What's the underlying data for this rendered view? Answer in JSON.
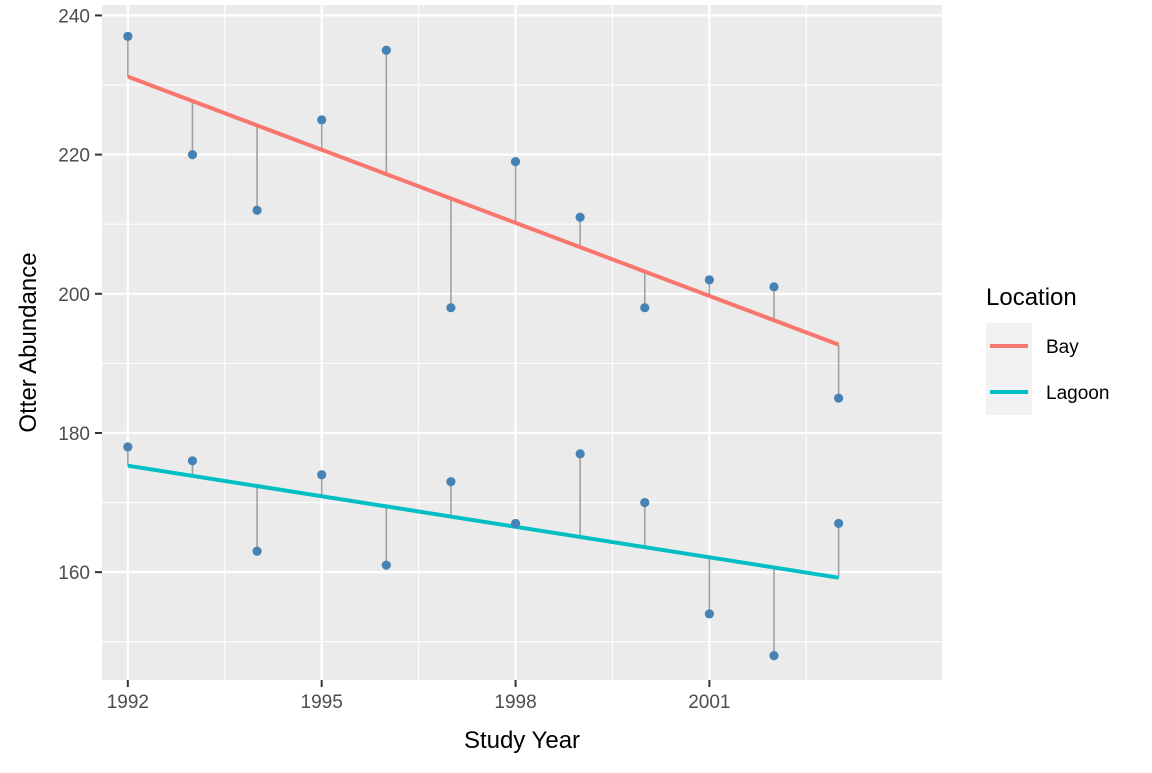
{
  "chart_data": {
    "type": "line",
    "title": "",
    "xlabel": "Study Year",
    "ylabel": "Otter Abundance",
    "xlim": [
      1991.6,
      2004.6
    ],
    "ylim": [
      144.5,
      241.5
    ],
    "x_ticks": [
      1992,
      1995,
      1998,
      2001
    ],
    "y_ticks": [
      160,
      180,
      200,
      220,
      240
    ],
    "grid": true,
    "legend": {
      "title": "Location",
      "position": "right",
      "entries": [
        "Bay",
        "Lagoon"
      ]
    },
    "point_color": "#4682b4",
    "residual_color": "#a0a0a0",
    "series": [
      {
        "name": "Bay",
        "color": "#f8766d",
        "x": [
          1992,
          1993,
          1994,
          1995,
          1996,
          1997,
          1998,
          1999,
          2000,
          2001,
          2002,
          2003
        ],
        "observed": [
          237,
          220,
          212,
          225,
          235,
          198,
          219,
          211,
          198,
          202,
          201,
          185
        ],
        "fit_start": [
          1992,
          231.2
        ],
        "fit_end": [
          2003,
          192.7
        ]
      },
      {
        "name": "Lagoon",
        "color": "#00bfc4",
        "x": [
          1992,
          1993,
          1994,
          1995,
          1996,
          1997,
          1998,
          1999,
          2000,
          2001,
          2002,
          2003
        ],
        "observed": [
          178,
          176,
          163,
          174,
          161,
          173,
          167,
          177,
          170,
          154,
          148,
          167
        ],
        "fit_start": [
          1992,
          175.3
        ],
        "fit_end": [
          2003,
          159.2
        ]
      }
    ]
  }
}
